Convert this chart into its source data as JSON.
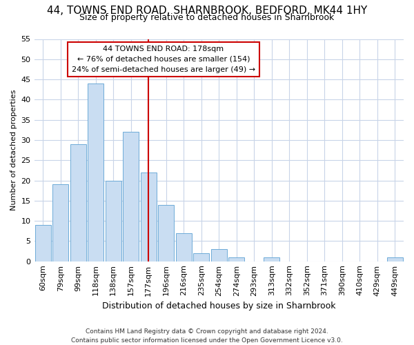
{
  "title1": "44, TOWNS END ROAD, SHARNBROOK, BEDFORD, MK44 1HY",
  "title2": "Size of property relative to detached houses in Sharnbrook",
  "xlabel": "Distribution of detached houses by size in Sharnbrook",
  "ylabel": "Number of detached properties",
  "categories": [
    "60sqm",
    "79sqm",
    "99sqm",
    "118sqm",
    "138sqm",
    "157sqm",
    "177sqm",
    "196sqm",
    "216sqm",
    "235sqm",
    "254sqm",
    "274sqm",
    "293sqm",
    "313sqm",
    "332sqm",
    "352sqm",
    "371sqm",
    "390sqm",
    "410sqm",
    "429sqm",
    "449sqm"
  ],
  "values": [
    9,
    19,
    29,
    44,
    20,
    32,
    22,
    14,
    7,
    2,
    3,
    1,
    0,
    1,
    0,
    0,
    0,
    0,
    0,
    0,
    1
  ],
  "bar_color": "#c9ddf2",
  "bar_edge_color": "#6daad8",
  "vline_x_index": 6,
  "vline_color": "#cc0000",
  "annotation_text": "44 TOWNS END ROAD: 178sqm\n← 76% of detached houses are smaller (154)\n24% of semi-detached houses are larger (49) →",
  "annotation_box_facecolor": "#ffffff",
  "annotation_box_edgecolor": "#cc0000",
  "ylim": [
    0,
    55
  ],
  "yticks": [
    0,
    5,
    10,
    15,
    20,
    25,
    30,
    35,
    40,
    45,
    50,
    55
  ],
  "grid_color": "#c8d4e8",
  "background_color": "#ffffff",
  "plot_bg_color": "#ffffff",
  "title1_fontsize": 11,
  "title2_fontsize": 9,
  "xlabel_fontsize": 9,
  "ylabel_fontsize": 8,
  "footer": "Contains HM Land Registry data © Crown copyright and database right 2024.\nContains public sector information licensed under the Open Government Licence v3.0.",
  "footer_fontsize": 6.5
}
